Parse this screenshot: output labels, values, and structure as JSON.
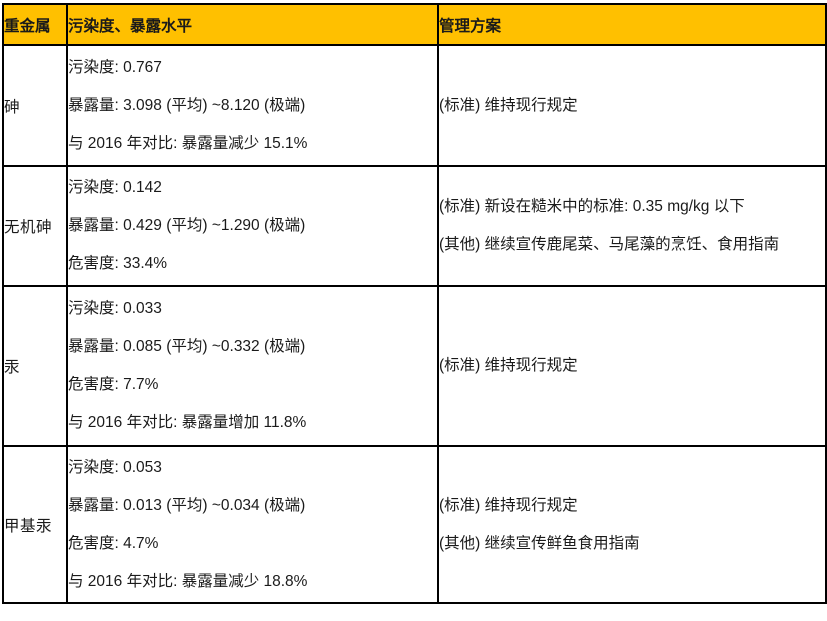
{
  "colors": {
    "header_bg": "#FFC000",
    "border": "#000000",
    "body_text": "#1a1a1a",
    "header_text": "#000000"
  },
  "table": {
    "header": {
      "metal": "重金属",
      "levels": "污染度、暴露水平",
      "plan": "管理方案"
    },
    "rows": [
      {
        "metal": "砷",
        "lines": [
          "污染度: 0.767",
          "暴露量: 3.098 (平均) ~8.120 (极端)",
          "与 2016 年对比: 暴露量减少 15.1%"
        ],
        "plan": [
          "(标准) 维持现行规定"
        ]
      },
      {
        "metal": "无机砷",
        "lines": [
          "污染度: 0.142",
          "暴露量: 0.429 (平均) ~1.290 (极端)",
          "危害度: 33.4%"
        ],
        "plan": [
          "(标准) 新设在糙米中的标准: 0.35 mg/kg 以下",
          "(其他) 继续宣传鹿尾菜、马尾藻的烹饪、食用指南"
        ]
      },
      {
        "metal": "汞",
        "lines": [
          "污染度: 0.033",
          "暴露量: 0.085 (平均) ~0.332 (极端)",
          "危害度: 7.7%",
          "与 2016 年对比: 暴露量增加 11.8%"
        ],
        "plan": [
          "(标准) 维持现行规定"
        ]
      },
      {
        "metal": "甲基汞",
        "lines": [
          "污染度: 0.053",
          "暴露量: 0.013 (平均) ~0.034 (极端)",
          "危害度: 4.7%",
          "与 2016 年对比: 暴露量减少 18.8%"
        ],
        "plan": [
          "(标准) 维持现行规定",
          "(其他) 继续宣传鲜鱼食用指南"
        ]
      }
    ]
  }
}
